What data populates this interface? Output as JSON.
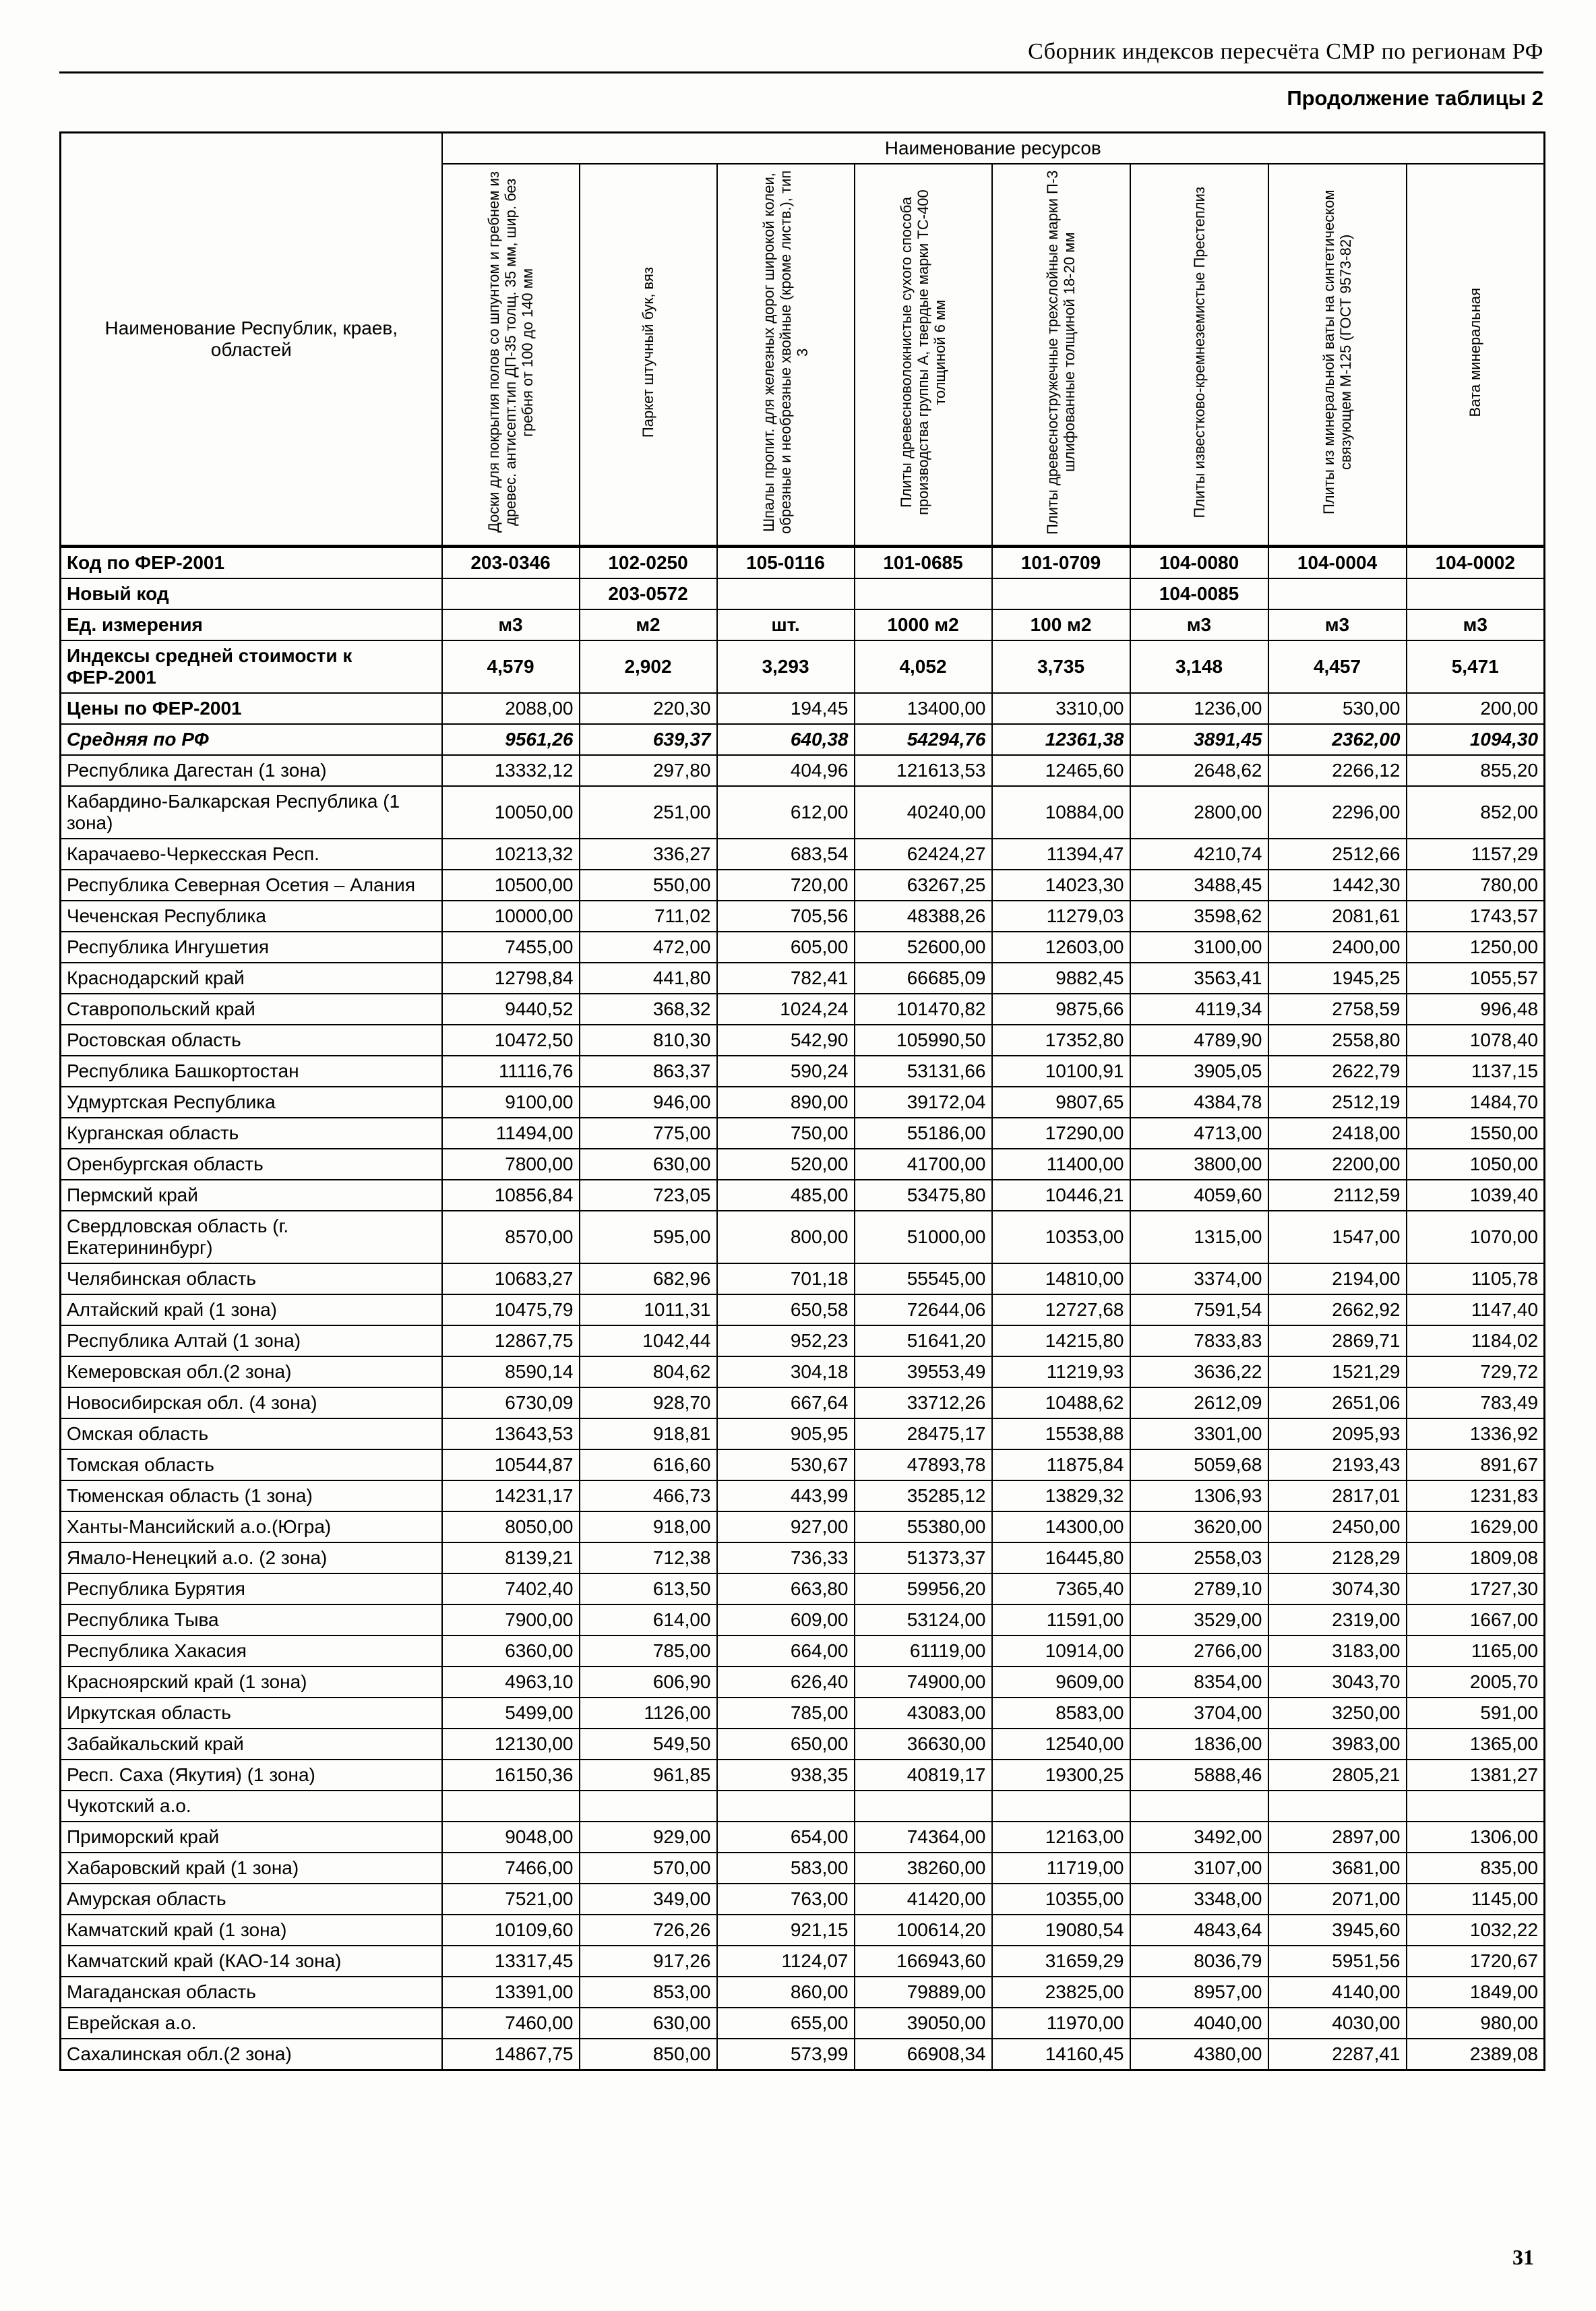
{
  "page": {
    "header_title": "Сборник индексов пересчёта СМР  по регионам РФ",
    "subtitle": "Продолжение таблицы 2",
    "page_number": "31"
  },
  "colors": {
    "text": "#000000",
    "background": "#fdfdfb",
    "border": "#000000"
  },
  "table": {
    "resources_group_header": "Наименование ресурсов",
    "region_column_header": "Наименование Республик, краев, областей",
    "columns": [
      "Доски для покрытия полов со шпунтом и гребнем из древес. антисепт.тип ДП-35 толщ. 35 мм, шир. без гребня от 100 до 140 мм",
      "Паркет штучный бук, вяз",
      "Шпалы пропит. для железных дорог широкой колеи, обрезные и необрезные хвойные (кроме листв.), тип 3",
      "Плиты древесноволокнистые сухого способа производства группы А, твердые марки ТС-400 толщиной 6 мм",
      "Плиты древесностружечные трехслойные марки П-3 шлифованные толщиной 18-20 мм",
      "Плиты известково-кремнеземистые Престеплиз",
      "Плиты из минеральной ваты на синтетическом связующем М-125 (ГОСТ 9573-82)",
      "Вата минеральная"
    ],
    "meta_rows": [
      {
        "label": "Код по ФЕР-2001",
        "values": [
          "203-0346",
          "102-0250",
          "105-0116",
          "101-0685",
          "101-0709",
          "104-0080",
          "104-0004",
          "104-0002"
        ]
      },
      {
        "label": "Новый код",
        "values": [
          "",
          "203-0572",
          "",
          "",
          "",
          "104-0085",
          "",
          ""
        ]
      },
      {
        "label": "Ед. измерения",
        "values": [
          "м3",
          "м2",
          "шт.",
          "1000 м2",
          "100 м2",
          "м3",
          "м3",
          "м3"
        ]
      },
      {
        "label": "Индексы средней стоимости к ФЕР-2001",
        "values": [
          "4,579",
          "2,902",
          "3,293",
          "4,052",
          "3,735",
          "3,148",
          "4,457",
          "5,471"
        ]
      },
      {
        "label": "Цены по ФЕР-2001",
        "values": [
          "2088,00",
          "220,30",
          "194,45",
          "13400,00",
          "3310,00",
          "1236,00",
          "530,00",
          "200,00"
        ]
      },
      {
        "label": "Средняя по РФ",
        "values": [
          "9561,26",
          "639,37",
          "640,38",
          "54294,76",
          "12361,38",
          "3891,45",
          "2362,00",
          "1094,30"
        ]
      }
    ],
    "data_rows": [
      {
        "label": "Республика Дагестан (1 зона)",
        "values": [
          "13332,12",
          "297,80",
          "404,96",
          "121613,53",
          "12465,60",
          "2648,62",
          "2266,12",
          "855,20"
        ]
      },
      {
        "label": "Кабардино-Балкарская Республика (1 зона)",
        "values": [
          "10050,00",
          "251,00",
          "612,00",
          "40240,00",
          "10884,00",
          "2800,00",
          "2296,00",
          "852,00"
        ]
      },
      {
        "label": "Карачаево-Черкесская Респ.",
        "values": [
          "10213,32",
          "336,27",
          "683,54",
          "62424,27",
          "11394,47",
          "4210,74",
          "2512,66",
          "1157,29"
        ]
      },
      {
        "label": "Республика Северная Осетия – Алания",
        "values": [
          "10500,00",
          "550,00",
          "720,00",
          "63267,25",
          "14023,30",
          "3488,45",
          "1442,30",
          "780,00"
        ]
      },
      {
        "label": "Чеченская Республика",
        "values": [
          "10000,00",
          "711,02",
          "705,56",
          "48388,26",
          "11279,03",
          "3598,62",
          "2081,61",
          "1743,57"
        ]
      },
      {
        "label": "Республика Ингушетия",
        "values": [
          "7455,00",
          "472,00",
          "605,00",
          "52600,00",
          "12603,00",
          "3100,00",
          "2400,00",
          "1250,00"
        ]
      },
      {
        "label": "Краснодарский край",
        "values": [
          "12798,84",
          "441,80",
          "782,41",
          "66685,09",
          "9882,45",
          "3563,41",
          "1945,25",
          "1055,57"
        ]
      },
      {
        "label": "Ставропольский край",
        "values": [
          "9440,52",
          "368,32",
          "1024,24",
          "101470,82",
          "9875,66",
          "4119,34",
          "2758,59",
          "996,48"
        ]
      },
      {
        "label": "Ростовская область",
        "values": [
          "10472,50",
          "810,30",
          "542,90",
          "105990,50",
          "17352,80",
          "4789,90",
          "2558,80",
          "1078,40"
        ]
      },
      {
        "label": "Республика Башкортостан",
        "values": [
          "11116,76",
          "863,37",
          "590,24",
          "53131,66",
          "10100,91",
          "3905,05",
          "2622,79",
          "1137,15"
        ]
      },
      {
        "label": "Удмуртская Республика",
        "values": [
          "9100,00",
          "946,00",
          "890,00",
          "39172,04",
          "9807,65",
          "4384,78",
          "2512,19",
          "1484,70"
        ]
      },
      {
        "label": "Курганская область",
        "values": [
          "11494,00",
          "775,00",
          "750,00",
          "55186,00",
          "17290,00",
          "4713,00",
          "2418,00",
          "1550,00"
        ]
      },
      {
        "label": "Оренбургская область",
        "values": [
          "7800,00",
          "630,00",
          "520,00",
          "41700,00",
          "11400,00",
          "3800,00",
          "2200,00",
          "1050,00"
        ]
      },
      {
        "label": "Пермский край",
        "values": [
          "10856,84",
          "723,05",
          "485,00",
          "53475,80",
          "10446,21",
          "4059,60",
          "2112,59",
          "1039,40"
        ]
      },
      {
        "label": "Свердловская область (г. Екатерининбург)",
        "values": [
          "8570,00",
          "595,00",
          "800,00",
          "51000,00",
          "10353,00",
          "1315,00",
          "1547,00",
          "1070,00"
        ]
      },
      {
        "label": "Челябинская область",
        "values": [
          "10683,27",
          "682,96",
          "701,18",
          "55545,00",
          "14810,00",
          "3374,00",
          "2194,00",
          "1105,78"
        ]
      },
      {
        "label": "Алтайский край (1 зона)",
        "values": [
          "10475,79",
          "1011,31",
          "650,58",
          "72644,06",
          "12727,68",
          "7591,54",
          "2662,92",
          "1147,40"
        ]
      },
      {
        "label": "Республика Алтай (1 зона)",
        "values": [
          "12867,75",
          "1042,44",
          "952,23",
          "51641,20",
          "14215,80",
          "7833,83",
          "2869,71",
          "1184,02"
        ]
      },
      {
        "label": "Кемеровская обл.(2 зона)",
        "values": [
          "8590,14",
          "804,62",
          "304,18",
          "39553,49",
          "11219,93",
          "3636,22",
          "1521,29",
          "729,72"
        ]
      },
      {
        "label": "Новосибирская обл. (4 зона)",
        "values": [
          "6730,09",
          "928,70",
          "667,64",
          "33712,26",
          "10488,62",
          "2612,09",
          "2651,06",
          "783,49"
        ]
      },
      {
        "label": "Омская область",
        "values": [
          "13643,53",
          "918,81",
          "905,95",
          "28475,17",
          "15538,88",
          "3301,00",
          "2095,93",
          "1336,92"
        ]
      },
      {
        "label": "Томская область",
        "values": [
          "10544,87",
          "616,60",
          "530,67",
          "47893,78",
          "11875,84",
          "5059,68",
          "2193,43",
          "891,67"
        ]
      },
      {
        "label": "Тюменская область (1 зона)",
        "values": [
          "14231,17",
          "466,73",
          "443,99",
          "35285,12",
          "13829,32",
          "1306,93",
          "2817,01",
          "1231,83"
        ]
      },
      {
        "label": "Ханты-Мансийский а.о.(Югра)",
        "values": [
          "8050,00",
          "918,00",
          "927,00",
          "55380,00",
          "14300,00",
          "3620,00",
          "2450,00",
          "1629,00"
        ]
      },
      {
        "label": "Ямало-Ненецкий а.о. (2 зона)",
        "values": [
          "8139,21",
          "712,38",
          "736,33",
          "51373,37",
          "16445,80",
          "2558,03",
          "2128,29",
          "1809,08"
        ]
      },
      {
        "label": "Республика Бурятия",
        "values": [
          "7402,40",
          "613,50",
          "663,80",
          "59956,20",
          "7365,40",
          "2789,10",
          "3074,30",
          "1727,30"
        ]
      },
      {
        "label": "Республика Тыва",
        "values": [
          "7900,00",
          "614,00",
          "609,00",
          "53124,00",
          "11591,00",
          "3529,00",
          "2319,00",
          "1667,00"
        ]
      },
      {
        "label": "Республика Хакасия",
        "values": [
          "6360,00",
          "785,00",
          "664,00",
          "61119,00",
          "10914,00",
          "2766,00",
          "3183,00",
          "1165,00"
        ]
      },
      {
        "label": "Красноярский край (1 зона)",
        "values": [
          "4963,10",
          "606,90",
          "626,40",
          "74900,00",
          "9609,00",
          "8354,00",
          "3043,70",
          "2005,70"
        ]
      },
      {
        "label": "Иркутская область",
        "values": [
          "5499,00",
          "1126,00",
          "785,00",
          "43083,00",
          "8583,00",
          "3704,00",
          "3250,00",
          "591,00"
        ]
      },
      {
        "label": "Забайкальский край",
        "values": [
          "12130,00",
          "549,50",
          "650,00",
          "36630,00",
          "12540,00",
          "1836,00",
          "3983,00",
          "1365,00"
        ]
      },
      {
        "label": "Респ. Саха (Якутия) (1 зона)",
        "values": [
          "16150,36",
          "961,85",
          "938,35",
          "40819,17",
          "19300,25",
          "5888,46",
          "2805,21",
          "1381,27"
        ]
      },
      {
        "label": "Чукотский а.о.",
        "values": [
          "",
          "",
          "",
          "",
          "",
          "",
          "",
          ""
        ]
      },
      {
        "label": "Приморский край",
        "values": [
          "9048,00",
          "929,00",
          "654,00",
          "74364,00",
          "12163,00",
          "3492,00",
          "2897,00",
          "1306,00"
        ]
      },
      {
        "label": "Хабаровский край (1 зона)",
        "values": [
          "7466,00",
          "570,00",
          "583,00",
          "38260,00",
          "11719,00",
          "3107,00",
          "3681,00",
          "835,00"
        ]
      },
      {
        "label": "Амурская область",
        "values": [
          "7521,00",
          "349,00",
          "763,00",
          "41420,00",
          "10355,00",
          "3348,00",
          "2071,00",
          "1145,00"
        ]
      },
      {
        "label": "Камчатский край (1 зона)",
        "values": [
          "10109,60",
          "726,26",
          "921,15",
          "100614,20",
          "19080,54",
          "4843,64",
          "3945,60",
          "1032,22"
        ]
      },
      {
        "label": "Камчатский край (КАО-14 зона)",
        "values": [
          "13317,45",
          "917,26",
          "1124,07",
          "166943,60",
          "31659,29",
          "8036,79",
          "5951,56",
          "1720,67"
        ]
      },
      {
        "label": "Магаданская область",
        "values": [
          "13391,00",
          "853,00",
          "860,00",
          "79889,00",
          "23825,00",
          "8957,00",
          "4140,00",
          "1849,00"
        ]
      },
      {
        "label": "Еврейская а.о.",
        "values": [
          "7460,00",
          "630,00",
          "655,00",
          "39050,00",
          "11970,00",
          "4040,00",
          "4030,00",
          "980,00"
        ]
      },
      {
        "label": "Сахалинская обл.(2 зона)",
        "values": [
          "14867,75",
          "850,00",
          "573,99",
          "66908,34",
          "14160,45",
          "4380,00",
          "2287,41",
          "2389,08"
        ]
      }
    ]
  }
}
